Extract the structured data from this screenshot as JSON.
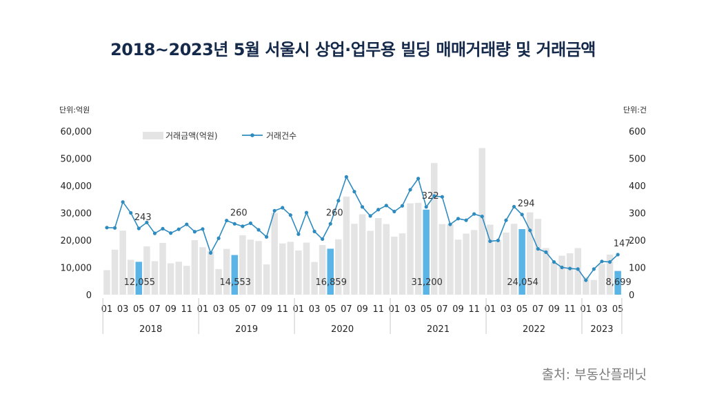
{
  "title": "2018~2023년 5월 서울시 상업·업무용 빌딩 매매거래량 및 거래금액",
  "source": "출처: 부동산플래닛",
  "chart_data": {
    "type": "bar",
    "left_unit": "단위:억원",
    "right_unit": "단위:건",
    "y_left_lim": [
      0,
      60000
    ],
    "y_left_ticks": [
      "0",
      "10,000",
      "20,000",
      "30,000",
      "40,000",
      "50,000",
      "60,000"
    ],
    "y_right_lim": [
      0,
      600
    ],
    "y_right_ticks": [
      "0",
      "100",
      "200",
      "300",
      "400",
      "500",
      "600"
    ],
    "x_month_labels": [
      "01",
      "03",
      "05",
      "07",
      "09",
      "11"
    ],
    "years": [
      "2018",
      "2019",
      "2020",
      "2021",
      "2022",
      "2023"
    ],
    "months_per_year": [
      12,
      12,
      12,
      12,
      12,
      5
    ],
    "grid": false,
    "legend_position": "top-left",
    "colors": {
      "bar": "#e4e4e4",
      "bar_highlight": "#5ab4e6",
      "line": "#2e8bbf"
    },
    "series": [
      {
        "name": "거래금액(억원)",
        "type": "bar",
        "axis": "left",
        "values": [
          9000,
          16500,
          23500,
          12800,
          12055,
          17700,
          12300,
          19000,
          11500,
          12100,
          10600,
          20000,
          17400,
          16000,
          9400,
          16800,
          14553,
          21800,
          20200,
          19700,
          11100,
          30000,
          18800,
          19400,
          16200,
          19100,
          12000,
          18200,
          16859,
          20300,
          36000,
          26000,
          29500,
          23400,
          28100,
          25900,
          21300,
          22500,
          33500,
          33700,
          31200,
          48300,
          25900,
          25900,
          20200,
          22400,
          23700,
          53800,
          25700,
          20000,
          22800,
          26000,
          24054,
          30200,
          27800,
          17100,
          11900,
          14300,
          15200,
          17100,
          6500,
          5400,
          11300,
          14700,
          8699
        ]
      },
      {
        "name": "거래건수",
        "type": "line",
        "axis": "right",
        "values": [
          246,
          245,
          340,
          300,
          243,
          265,
          225,
          242,
          226,
          240,
          258,
          231,
          241,
          153,
          207,
          272,
          260,
          251,
          262,
          238,
          212,
          308,
          319,
          292,
          222,
          301,
          232,
          204,
          260,
          345,
          432,
          378,
          322,
          289,
          312,
          327,
          305,
          326,
          385,
          426,
          322,
          362,
          359,
          258,
          279,
          273,
          296,
          287,
          196,
          199,
          273,
          323,
          294,
          236,
          168,
          156,
          120,
          100,
          96,
          94,
          53,
          94,
          122,
          120,
          147
        ]
      }
    ],
    "highlight_month": 5,
    "bar_data_labels": [
      "12,055",
      "14,553",
      "16,859",
      "31,200",
      "24,054",
      "8,699"
    ],
    "line_data_labels": [
      "243",
      "260",
      "260",
      "322",
      "294",
      "147"
    ]
  }
}
